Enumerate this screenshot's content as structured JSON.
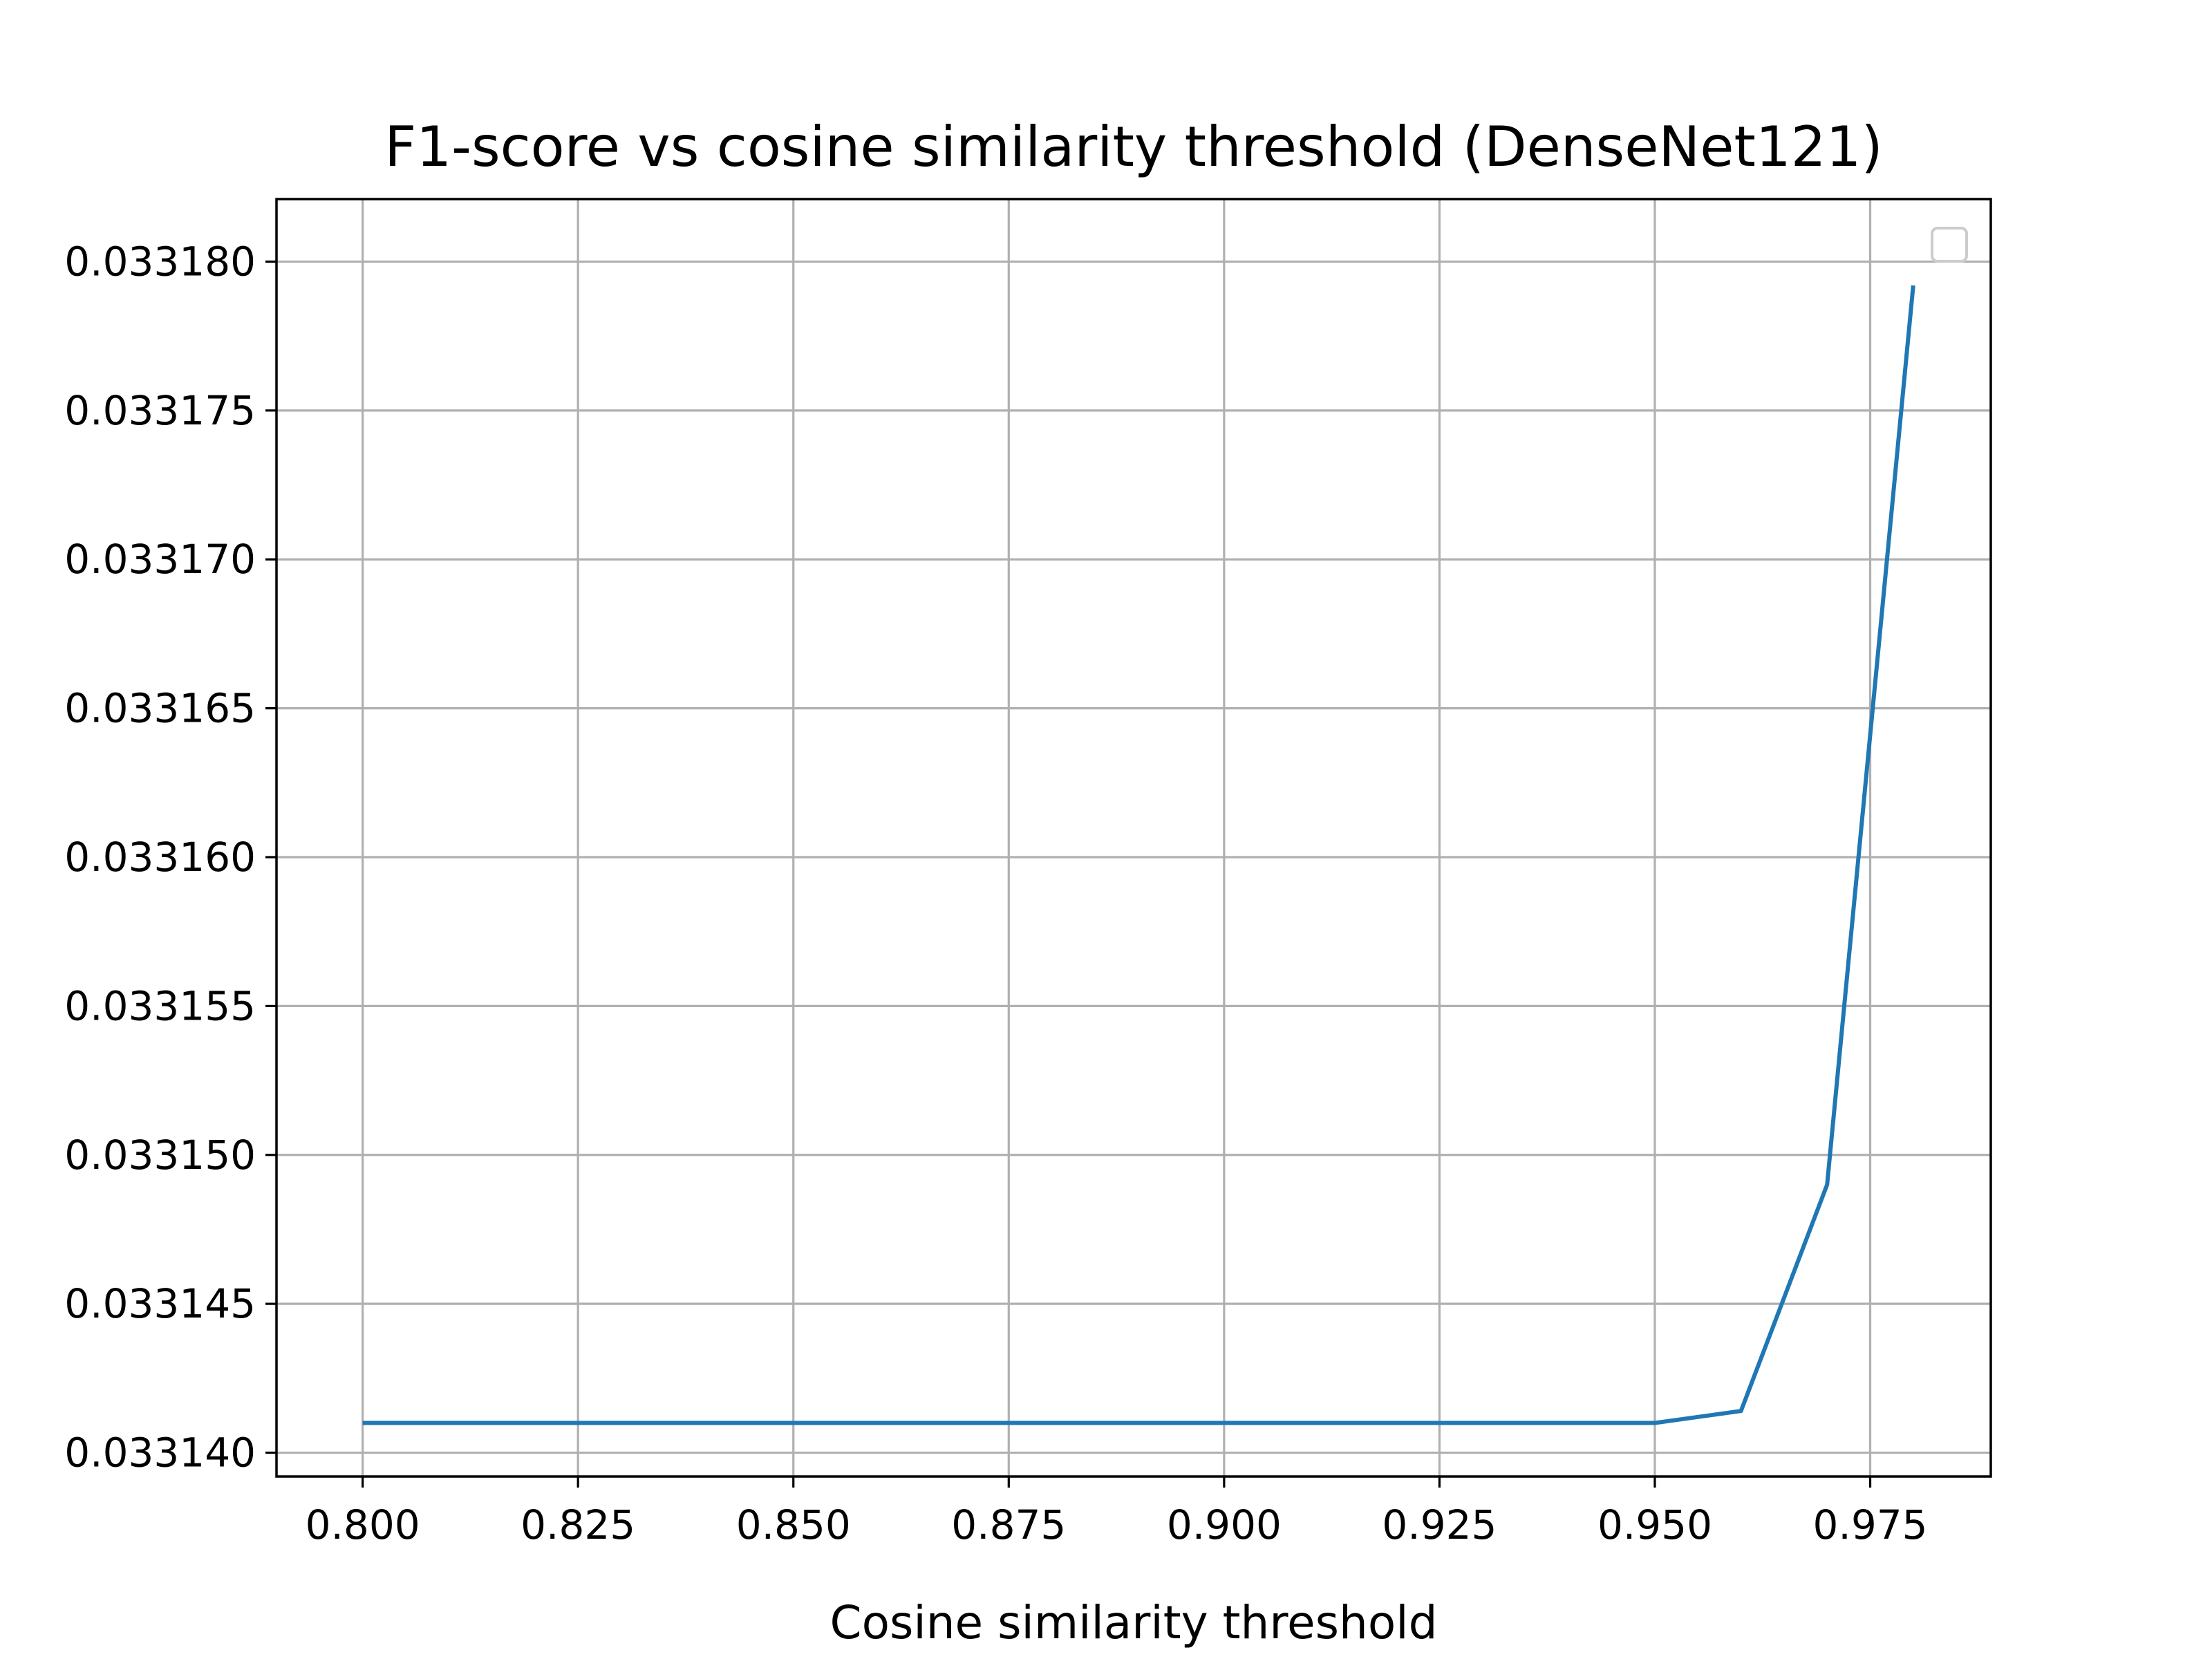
{
  "chart_data": {
    "type": "line",
    "title": "F1-score vs cosine similarity threshold (DenseNet121)",
    "xlabel": "Cosine similarity threshold",
    "ylabel": "",
    "xlim": [
      0.79,
      0.989
    ],
    "ylim": [
      0.0331392,
      0.0331821
    ],
    "x_ticks": [
      0.8,
      0.825,
      0.85,
      0.875,
      0.9,
      0.925,
      0.95,
      0.975
    ],
    "x_tick_labels": [
      "0.800",
      "0.825",
      "0.850",
      "0.875",
      "0.900",
      "0.925",
      "0.950",
      "0.975"
    ],
    "y_ticks": [
      0.03314,
      0.033145,
      0.03315,
      0.033155,
      0.03316,
      0.033165,
      0.03317,
      0.033175,
      0.03318
    ],
    "y_tick_labels": [
      "0.033140",
      "0.033145",
      "0.033150",
      "0.033155",
      "0.033160",
      "0.033165",
      "0.033170",
      "0.033175",
      "0.033180"
    ],
    "grid": true,
    "legend": "top-right",
    "series": [
      {
        "color": "#1f77b4",
        "x": [
          0.8,
          0.81,
          0.82,
          0.83,
          0.84,
          0.85,
          0.86,
          0.87,
          0.88,
          0.89,
          0.9,
          0.91,
          0.92,
          0.93,
          0.94,
          0.95,
          0.96,
          0.97,
          0.98
        ],
        "y": [
          0.033141,
          0.033141,
          0.033141,
          0.033141,
          0.033141,
          0.033141,
          0.033141,
          0.033141,
          0.033141,
          0.033141,
          0.033141,
          0.033141,
          0.033141,
          0.033141,
          0.033141,
          0.033141,
          0.0331414,
          0.033149,
          0.0331792
        ]
      }
    ]
  }
}
